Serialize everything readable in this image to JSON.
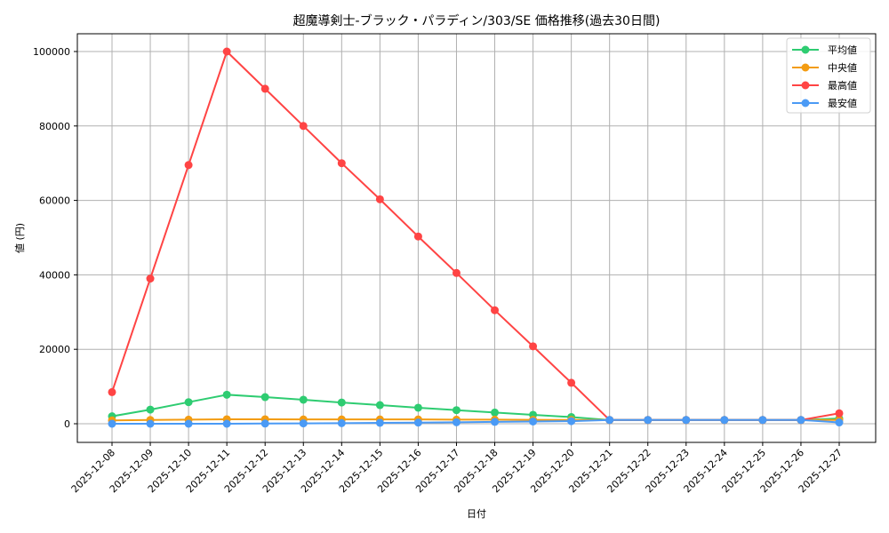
{
  "chart_data": {
    "type": "line",
    "title": "超魔導剣士-ブラック・パラディン/303/SE 価格推移(過去30日間)",
    "xlabel": "日付",
    "ylabel": "値 (円)",
    "ylim": [
      -5000,
      105000
    ],
    "yticks": [
      0,
      20000,
      40000,
      60000,
      80000,
      100000
    ],
    "ytick_labels": [
      "0",
      "20000",
      "40000",
      "60000",
      "80000",
      "100000"
    ],
    "grid": true,
    "legend_position": "upper right",
    "categories": [
      "2025-12-08",
      "2025-12-09",
      "2025-12-10",
      "2025-12-11",
      "2025-12-12",
      "2025-12-13",
      "2025-12-14",
      "2025-12-15",
      "2025-12-16",
      "2025-12-17",
      "2025-12-18",
      "2025-12-19",
      "2025-12-20",
      "2025-12-21",
      "2025-12-22",
      "2025-12-23",
      "2025-12-24",
      "2025-12-25",
      "2025-12-26",
      "2025-12-27"
    ],
    "series": [
      {
        "name": "平均値",
        "color": "#2ecc71",
        "values": [
          2000,
          3800,
          5800,
          7800,
          7150,
          6450,
          5700,
          5000,
          4300,
          3650,
          3000,
          2400,
          1800,
          1000,
          1000,
          1000,
          1000,
          1000,
          1000,
          1400
        ]
      },
      {
        "name": "中央値",
        "color": "#f39c12",
        "values": [
          900,
          1000,
          1100,
          1200,
          1200,
          1150,
          1150,
          1150,
          1150,
          1100,
          1100,
          1050,
          1000,
          1000,
          1000,
          1000,
          1000,
          1000,
          1000,
          1000
        ]
      },
      {
        "name": "最高値",
        "color": "#ff4444",
        "values": [
          8500,
          39000,
          69500,
          100000,
          90000,
          80000,
          70000,
          60300,
          50300,
          40500,
          30500,
          20800,
          11000,
          1000,
          1000,
          1000,
          1000,
          1000,
          1000,
          2800
        ]
      },
      {
        "name": "最安値",
        "color": "#4a9af5",
        "values": [
          0,
          0,
          0,
          0,
          50,
          100,
          150,
          250,
          300,
          400,
          500,
          600,
          700,
          1000,
          1000,
          1000,
          1000,
          1000,
          1000,
          350
        ]
      }
    ]
  }
}
